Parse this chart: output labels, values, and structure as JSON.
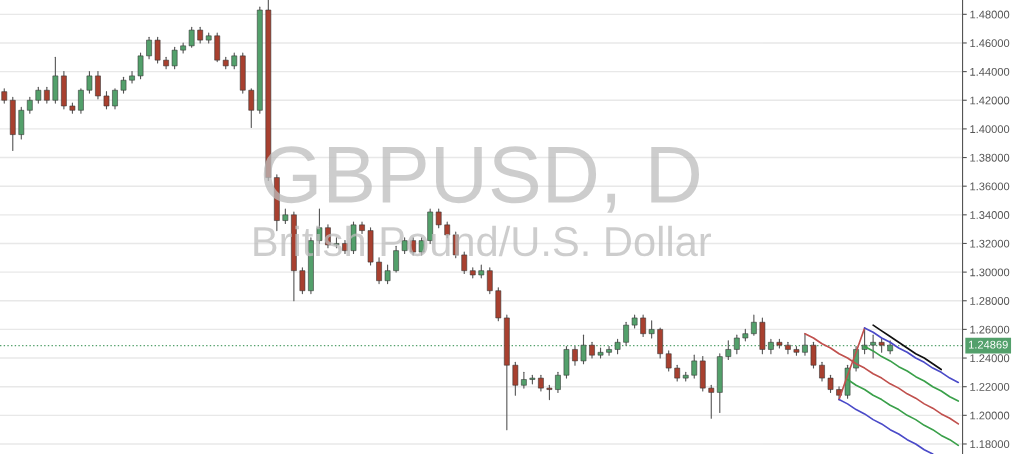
{
  "chart_data": {
    "type": "candlestick",
    "title": "GBPUSD, D",
    "subtitle": "British Pound/U.S. Dollar",
    "categories": [
      null,
      null,
      null,
      null,
      null,
      null,
      null,
      null,
      null,
      null,
      null,
      null,
      null,
      null,
      null,
      null,
      null,
      null,
      null,
      null,
      null,
      null,
      null,
      null,
      null,
      null,
      null,
      null,
      null,
      null,
      null,
      null,
      null,
      null,
      null,
      null,
      null,
      null,
      null,
      null,
      null,
      null,
      null,
      null,
      null,
      null,
      null,
      null,
      null,
      null,
      null,
      null,
      null,
      null,
      null,
      null,
      null,
      null,
      null,
      null,
      null,
      null,
      null,
      null,
      null,
      null,
      null,
      null,
      null,
      null,
      null,
      null,
      null,
      null,
      null,
      null,
      null,
      null,
      null,
      null,
      null,
      null,
      null,
      null,
      null,
      null,
      null,
      null,
      null,
      null,
      null,
      null,
      null,
      null,
      null,
      null,
      null,
      null,
      null,
      null,
      null,
      null,
      null,
      null,
      null,
      null,
      null,
      null,
      null,
      null,
      null,
      null,
      null
    ],
    "ohlc": [
      [
        1.426,
        1.428,
        1.418,
        1.42
      ],
      [
        1.42,
        1.422,
        1.385,
        1.396
      ],
      [
        1.396,
        1.415,
        1.393,
        1.413
      ],
      [
        1.413,
        1.422,
        1.411,
        1.42
      ],
      [
        1.42,
        1.429,
        1.418,
        1.427
      ],
      [
        1.427,
        1.429,
        1.418,
        1.42
      ],
      [
        1.42,
        1.45,
        1.418,
        1.437
      ],
      [
        1.437,
        1.44,
        1.414,
        1.416
      ],
      [
        1.416,
        1.418,
        1.411,
        1.413
      ],
      [
        1.413,
        1.428,
        1.411,
        1.427
      ],
      [
        1.427,
        1.44,
        1.425,
        1.437
      ],
      [
        1.437,
        1.44,
        1.421,
        1.423
      ],
      [
        1.423,
        1.426,
        1.414,
        1.416
      ],
      [
        1.416,
        1.428,
        1.414,
        1.427
      ],
      [
        1.427,
        1.436,
        1.425,
        1.434
      ],
      [
        1.434,
        1.44,
        1.432,
        1.437
      ],
      [
        1.437,
        1.453,
        1.435,
        1.451
      ],
      [
        1.451,
        1.464,
        1.449,
        1.462
      ],
      [
        1.462,
        1.464,
        1.446,
        1.448
      ],
      [
        1.448,
        1.45,
        1.442,
        1.444
      ],
      [
        1.444,
        1.457,
        1.442,
        1.455
      ],
      [
        1.455,
        1.46,
        1.453,
        1.458
      ],
      [
        1.458,
        1.471,
        1.457,
        1.469
      ],
      [
        1.469,
        1.471,
        1.46,
        1.462
      ],
      [
        1.462,
        1.467,
        1.46,
        1.465
      ],
      [
        1.465,
        1.467,
        1.447,
        1.448
      ],
      [
        1.448,
        1.45,
        1.442,
        1.444
      ],
      [
        1.444,
        1.453,
        1.442,
        1.451
      ],
      [
        1.451,
        1.453,
        1.425,
        1.427
      ],
      [
        1.427,
        1.428,
        1.401,
        1.413
      ],
      [
        1.413,
        1.485,
        1.411,
        1.483
      ],
      [
        1.483,
        1.49,
        1.364,
        1.366
      ],
      [
        1.366,
        1.368,
        1.329,
        1.336
      ],
      [
        1.336,
        1.344,
        1.334,
        1.34
      ],
      [
        1.34,
        1.342,
        1.28,
        1.301
      ],
      [
        1.301,
        1.303,
        1.285,
        1.287
      ],
      [
        1.287,
        1.324,
        1.285,
        1.322
      ],
      [
        1.322,
        1.344,
        1.32,
        1.331
      ],
      [
        1.331,
        1.333,
        1.317,
        1.319
      ],
      [
        1.319,
        1.324,
        1.317,
        1.32
      ],
      [
        1.32,
        1.322,
        1.313,
        1.315
      ],
      [
        1.315,
        1.335,
        1.313,
        1.333
      ],
      [
        1.333,
        1.335,
        1.327,
        1.329
      ],
      [
        1.329,
        1.331,
        1.305,
        1.307
      ],
      [
        1.307,
        1.31,
        1.292,
        1.294
      ],
      [
        1.294,
        1.305,
        1.292,
        1.301
      ],
      [
        1.301,
        1.318,
        1.3,
        1.315
      ],
      [
        1.315,
        1.324,
        1.313,
        1.322
      ],
      [
        1.322,
        1.324,
        1.312,
        1.314
      ],
      [
        1.314,
        1.324,
        1.312,
        1.322
      ],
      [
        1.322,
        1.344,
        1.32,
        1.342
      ],
      [
        1.342,
        1.344,
        1.331,
        1.333
      ],
      [
        1.333,
        1.335,
        1.324,
        1.326
      ],
      [
        1.326,
        1.328,
        1.31,
        1.312
      ],
      [
        1.312,
        1.314,
        1.299,
        1.301
      ],
      [
        1.301,
        1.303,
        1.296,
        1.298
      ],
      [
        1.298,
        1.305,
        1.296,
        1.301
      ],
      [
        1.301,
        1.303,
        1.285,
        1.287
      ],
      [
        1.287,
        1.289,
        1.266,
        1.268
      ],
      [
        1.268,
        1.27,
        1.19,
        1.235
      ],
      [
        1.235,
        1.237,
        1.214,
        1.221
      ],
      [
        1.221,
        1.23,
        1.219,
        1.225
      ],
      [
        1.225,
        1.228,
        1.222,
        1.226
      ],
      [
        1.226,
        1.228,
        1.217,
        1.219
      ],
      [
        1.219,
        1.221,
        1.211,
        1.218
      ],
      [
        1.218,
        1.23,
        1.216,
        1.228
      ],
      [
        1.228,
        1.248,
        1.226,
        1.246
      ],
      [
        1.246,
        1.248,
        1.235,
        1.238
      ],
      [
        1.238,
        1.256,
        1.236,
        1.249
      ],
      [
        1.249,
        1.251,
        1.24,
        1.242
      ],
      [
        1.242,
        1.247,
        1.24,
        1.244
      ],
      [
        1.244,
        1.248,
        1.242,
        1.246
      ],
      [
        1.246,
        1.253,
        1.243,
        1.251
      ],
      [
        1.251,
        1.265,
        1.249,
        1.263
      ],
      [
        1.263,
        1.27,
        1.261,
        1.268
      ],
      [
        1.268,
        1.27,
        1.255,
        1.257
      ],
      [
        1.257,
        1.266,
        1.254,
        1.26
      ],
      [
        1.26,
        1.261,
        1.24,
        1.243
      ],
      [
        1.243,
        1.245,
        1.231,
        1.233
      ],
      [
        1.233,
        1.235,
        1.224,
        1.226
      ],
      [
        1.226,
        1.23,
        1.224,
        1.228
      ],
      [
        1.228,
        1.242,
        1.226,
        1.238
      ],
      [
        1.238,
        1.241,
        1.217,
        1.219
      ],
      [
        1.219,
        1.221,
        1.198,
        1.216
      ],
      [
        1.216,
        1.243,
        1.202,
        1.241
      ],
      [
        1.241,
        1.252,
        1.239,
        1.246
      ],
      [
        1.246,
        1.256,
        1.243,
        1.254
      ],
      [
        1.254,
        1.26,
        1.252,
        1.257
      ],
      [
        1.257,
        1.27,
        1.256,
        1.265
      ],
      [
        1.265,
        1.268,
        1.243,
        1.246
      ],
      [
        1.246,
        1.253,
        1.243,
        1.251
      ],
      [
        1.251,
        1.253,
        1.247,
        1.249
      ],
      [
        1.249,
        1.251,
        1.243,
        1.246
      ],
      [
        1.246,
        1.248,
        1.242,
        1.244
      ],
      [
        1.244,
        1.257,
        1.242,
        1.249
      ],
      [
        1.249,
        1.251,
        1.233,
        1.235
      ],
      [
        1.235,
        1.237,
        1.224,
        1.226
      ],
      [
        1.226,
        1.228,
        1.216,
        1.218
      ],
      [
        1.218,
        1.22,
        1.211,
        1.214
      ],
      [
        1.214,
        1.235,
        1.212,
        1.233
      ],
      [
        1.233,
        1.248,
        1.231,
        1.246
      ],
      [
        1.246,
        1.261,
        1.243,
        1.249
      ],
      [
        1.249,
        1.256,
        1.24,
        1.251
      ],
      [
        1.251,
        1.254,
        1.244,
        1.249
      ],
      [
        1.245,
        1.252,
        1.243,
        1.249
      ],
      null,
      null,
      null,
      null,
      null,
      null,
      null,
      null
    ],
    "colors": [
      "#a8402f",
      "#a8402f",
      "#53a06b",
      "#53a06b",
      "#53a06b",
      "#a8402f",
      "#53a06b",
      "#a8402f",
      "#a8402f",
      "#53a06b",
      "#53a06b",
      "#a8402f",
      "#a8402f",
      "#53a06b",
      "#53a06b",
      "#53a06b",
      "#53a06b",
      "#53a06b",
      "#a8402f",
      "#a8402f",
      "#53a06b",
      "#53a06b",
      "#53a06b",
      "#a8402f",
      "#53a06b",
      "#a8402f",
      "#a8402f",
      "#53a06b",
      "#a8402f",
      "#a8402f",
      "#53a06b",
      "#a8402f",
      "#a8402f",
      "#53a06b",
      "#a8402f",
      "#a8402f",
      "#53a06b",
      "#53a06b",
      "#a8402f",
      "#53a06b",
      "#a8402f",
      "#53a06b",
      "#a8402f",
      "#a8402f",
      "#a8402f",
      "#53a06b",
      "#53a06b",
      "#53a06b",
      "#a8402f",
      "#53a06b",
      "#53a06b",
      "#a8402f",
      "#a8402f",
      "#a8402f",
      "#a8402f",
      "#a8402f",
      "#53a06b",
      "#a8402f",
      "#a8402f",
      "#a8402f",
      "#a8402f",
      "#53a06b",
      "#53a06b",
      "#a8402f",
      "#a8402f",
      "#53a06b",
      "#53a06b",
      "#a8402f",
      "#53a06b",
      "#a8402f",
      "#53a06b",
      "#53a06b",
      "#53a06b",
      "#53a06b",
      "#53a06b",
      "#a8402f",
      "#53a06b",
      "#a8402f",
      "#a8402f",
      "#a8402f",
      "#53a06b",
      "#53a06b",
      "#a8402f",
      "#a8402f",
      "#53a06b",
      "#53a06b",
      "#53a06b",
      "#53a06b",
      "#53a06b",
      "#a8402f",
      "#53a06b",
      "#a8402f",
      "#a8402f",
      "#a8402f",
      "#53a06b",
      "#a8402f",
      "#a8402f",
      "#a8402f",
      "#a8402f",
      "#53a06b",
      "#53a06b",
      "#53a06b",
      "#53a06b",
      "#a8402f",
      "#53a06b",
      null,
      null,
      null,
      null,
      null,
      null,
      null,
      null
    ],
    "series": [
      {
        "type": "line",
        "color": "#c0504d",
        "values": [
          null,
          null,
          null,
          null,
          null,
          null,
          null,
          null,
          null,
          null,
          null,
          null,
          null,
          null,
          null,
          null,
          null,
          null,
          null,
          null,
          null,
          null,
          null,
          null,
          null,
          null,
          null,
          null,
          null,
          null,
          null,
          null,
          null,
          null,
          null,
          null,
          null,
          null,
          null,
          null,
          null,
          null,
          null,
          null,
          null,
          null,
          null,
          null,
          null,
          null,
          null,
          null,
          null,
          null,
          null,
          null,
          null,
          null,
          null,
          null,
          null,
          null,
          null,
          null,
          null,
          null,
          null,
          null,
          null,
          null,
          null,
          null,
          null,
          null,
          null,
          null,
          null,
          null,
          null,
          null,
          null,
          null,
          null,
          null,
          null,
          null,
          null,
          null,
          null,
          null,
          null,
          null,
          null,
          null,
          1.257,
          1.254,
          1.25,
          1.247,
          1.243,
          1.24,
          1.236,
          1.233,
          1.229,
          1.226,
          1.222,
          1.219,
          1.215,
          1.212,
          1.208,
          1.205,
          1.201,
          1.198,
          1.194
        ]
      },
      {
        "type": "line",
        "color": "#c0504d",
        "values": [
          null,
          null,
          null,
          null,
          null,
          null,
          null,
          null,
          null,
          null,
          null,
          null,
          null,
          null,
          null,
          null,
          null,
          null,
          null,
          null,
          null,
          null,
          null,
          null,
          null,
          null,
          null,
          null,
          null,
          null,
          null,
          null,
          null,
          null,
          null,
          null,
          null,
          null,
          null,
          null,
          null,
          null,
          null,
          null,
          null,
          null,
          null,
          null,
          null,
          null,
          null,
          null,
          null,
          null,
          null,
          null,
          null,
          null,
          null,
          null,
          null,
          null,
          null,
          null,
          null,
          null,
          null,
          null,
          null,
          null,
          null,
          null,
          null,
          null,
          null,
          null,
          null,
          null,
          null,
          null,
          null,
          null,
          null,
          null,
          null,
          null,
          null,
          null,
          null,
          null,
          null,
          null,
          null,
          null,
          null,
          null,
          null,
          null,
          1.211,
          1.228,
          1.244,
          1.261,
          null,
          null,
          null,
          null,
          null,
          null,
          null,
          null,
          null,
          null,
          null
        ]
      },
      {
        "type": "line",
        "color": "#4a4ac8",
        "values": [
          null,
          null,
          null,
          null,
          null,
          null,
          null,
          null,
          null,
          null,
          null,
          null,
          null,
          null,
          null,
          null,
          null,
          null,
          null,
          null,
          null,
          null,
          null,
          null,
          null,
          null,
          null,
          null,
          null,
          null,
          null,
          null,
          null,
          null,
          null,
          null,
          null,
          null,
          null,
          null,
          null,
          null,
          null,
          null,
          null,
          null,
          null,
          null,
          null,
          null,
          null,
          null,
          null,
          null,
          null,
          null,
          null,
          null,
          null,
          null,
          null,
          null,
          null,
          null,
          null,
          null,
          null,
          null,
          null,
          null,
          null,
          null,
          null,
          null,
          null,
          null,
          null,
          null,
          null,
          null,
          null,
          null,
          null,
          null,
          null,
          null,
          null,
          null,
          null,
          null,
          null,
          null,
          null,
          null,
          null,
          null,
          null,
          null,
          null,
          null,
          null,
          1.261,
          1.258,
          1.254,
          1.251,
          1.247,
          1.244,
          1.24,
          1.237,
          1.233,
          1.23,
          1.226,
          1.223
        ]
      },
      {
        "type": "line",
        "color": "#4a4ac8",
        "values": [
          null,
          null,
          null,
          null,
          null,
          null,
          null,
          null,
          null,
          null,
          null,
          null,
          null,
          null,
          null,
          null,
          null,
          null,
          null,
          null,
          null,
          null,
          null,
          null,
          null,
          null,
          null,
          null,
          null,
          null,
          null,
          null,
          null,
          null,
          null,
          null,
          null,
          null,
          null,
          null,
          null,
          null,
          null,
          null,
          null,
          null,
          null,
          null,
          null,
          null,
          null,
          null,
          null,
          null,
          null,
          null,
          null,
          null,
          null,
          null,
          null,
          null,
          null,
          null,
          null,
          null,
          null,
          null,
          null,
          null,
          null,
          null,
          null,
          null,
          null,
          null,
          null,
          null,
          null,
          null,
          null,
          null,
          null,
          null,
          null,
          null,
          null,
          null,
          null,
          null,
          null,
          null,
          null,
          null,
          null,
          null,
          null,
          null,
          1.211,
          1.208,
          1.204,
          1.201,
          1.197,
          1.194,
          1.19,
          1.187,
          1.183,
          1.18,
          1.176,
          1.173,
          null,
          null,
          null
        ]
      },
      {
        "type": "line",
        "color": "#3aa04a",
        "values": [
          null,
          null,
          null,
          null,
          null,
          null,
          null,
          null,
          null,
          null,
          null,
          null,
          null,
          null,
          null,
          null,
          null,
          null,
          null,
          null,
          null,
          null,
          null,
          null,
          null,
          null,
          null,
          null,
          null,
          null,
          null,
          null,
          null,
          null,
          null,
          null,
          null,
          null,
          null,
          null,
          null,
          null,
          null,
          null,
          null,
          null,
          null,
          null,
          null,
          null,
          null,
          null,
          null,
          null,
          null,
          null,
          null,
          null,
          null,
          null,
          null,
          null,
          null,
          null,
          null,
          null,
          null,
          null,
          null,
          null,
          null,
          null,
          null,
          null,
          null,
          null,
          null,
          null,
          null,
          null,
          null,
          null,
          null,
          null,
          null,
          null,
          null,
          null,
          null,
          null,
          null,
          null,
          null,
          null,
          null,
          null,
          null,
          null,
          null,
          null,
          null,
          1.248,
          1.245,
          1.241,
          1.238,
          1.234,
          1.231,
          1.227,
          1.224,
          1.22,
          1.217,
          1.213,
          1.21
        ]
      },
      {
        "type": "line",
        "color": "#3aa04a",
        "values": [
          null,
          null,
          null,
          null,
          null,
          null,
          null,
          null,
          null,
          null,
          null,
          null,
          null,
          null,
          null,
          null,
          null,
          null,
          null,
          null,
          null,
          null,
          null,
          null,
          null,
          null,
          null,
          null,
          null,
          null,
          null,
          null,
          null,
          null,
          null,
          null,
          null,
          null,
          null,
          null,
          null,
          null,
          null,
          null,
          null,
          null,
          null,
          null,
          null,
          null,
          null,
          null,
          null,
          null,
          null,
          null,
          null,
          null,
          null,
          null,
          null,
          null,
          null,
          null,
          null,
          null,
          null,
          null,
          null,
          null,
          null,
          null,
          null,
          null,
          null,
          null,
          null,
          null,
          null,
          null,
          null,
          null,
          null,
          null,
          null,
          null,
          null,
          null,
          null,
          null,
          null,
          null,
          null,
          null,
          null,
          null,
          null,
          null,
          null,
          1.225,
          1.221,
          1.218,
          1.214,
          1.211,
          1.207,
          1.204,
          1.2,
          1.197,
          1.193,
          1.19,
          1.186,
          1.183,
          1.179
        ]
      },
      {
        "type": "line",
        "color": "#111111",
        "values": [
          null,
          null,
          null,
          null,
          null,
          null,
          null,
          null,
          null,
          null,
          null,
          null,
          null,
          null,
          null,
          null,
          null,
          null,
          null,
          null,
          null,
          null,
          null,
          null,
          null,
          null,
          null,
          null,
          null,
          null,
          null,
          null,
          null,
          null,
          null,
          null,
          null,
          null,
          null,
          null,
          null,
          null,
          null,
          null,
          null,
          null,
          null,
          null,
          null,
          null,
          null,
          null,
          null,
          null,
          null,
          null,
          null,
          null,
          null,
          null,
          null,
          null,
          null,
          null,
          null,
          null,
          null,
          null,
          null,
          null,
          null,
          null,
          null,
          null,
          null,
          null,
          null,
          null,
          null,
          null,
          null,
          null,
          null,
          null,
          null,
          null,
          null,
          null,
          null,
          null,
          null,
          null,
          null,
          null,
          null,
          null,
          null,
          null,
          null,
          null,
          null,
          null,
          1.263,
          1.259,
          1.255,
          1.251,
          1.247,
          1.243,
          1.24,
          1.236,
          1.232,
          null,
          null
        ]
      }
    ],
    "ref_lines": [
      {
        "axis": "y",
        "value": 1.24869,
        "label": "1.24869",
        "color": "#53a06b",
        "line_style": "dotted"
      }
    ],
    "ylim": [
      1.173,
      1.49
    ],
    "yticks": [
      {
        "value": 1.18,
        "label": "1.18000"
      },
      {
        "value": 1.2,
        "label": "1.20000"
      },
      {
        "value": 1.22,
        "label": "1.22000"
      },
      {
        "value": 1.24,
        "label": "1.24000"
      },
      {
        "value": 1.26,
        "label": "1.26000"
      },
      {
        "value": 1.28,
        "label": "1.28000"
      },
      {
        "value": 1.3,
        "label": "1.30000"
      },
      {
        "value": 1.32,
        "label": "1.32000"
      },
      {
        "value": 1.34,
        "label": "1.34000"
      },
      {
        "value": 1.36,
        "label": "1.36000"
      },
      {
        "value": 1.38,
        "label": "1.38000"
      },
      {
        "value": 1.4,
        "label": "1.40000"
      },
      {
        "value": 1.42,
        "label": "1.42000"
      },
      {
        "value": 1.44,
        "label": "1.44000"
      },
      {
        "value": 1.46,
        "label": "1.46000"
      },
      {
        "value": 1.48,
        "label": "1.48000"
      }
    ],
    "tick_labels": "y",
    "grid": "y"
  }
}
